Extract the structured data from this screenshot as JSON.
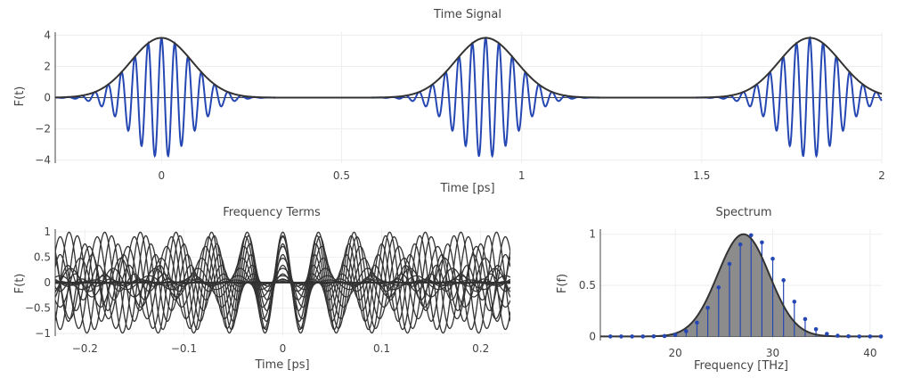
{
  "chart_data": [
    {
      "id": "time",
      "type": "line",
      "title": "Time Signal",
      "xlabel": "Time [ps]",
      "ylabel": "F(t)",
      "xlim": [
        -0.295,
        2.0
      ],
      "ylim": [
        -4.2,
        4.2
      ],
      "xticks": [
        0,
        0.5,
        1,
        1.5,
        2
      ],
      "xtick_labels": [
        "0",
        "0.5",
        "1",
        "1.5",
        "2"
      ],
      "yticks": [
        -4,
        -2,
        0,
        2,
        4
      ],
      "ytick_labels": [
        "−4",
        "−2",
        "0",
        "2",
        "4"
      ],
      "grid": true,
      "pulse": {
        "amplitude": 3.83,
        "carrier_thz": 27,
        "period_ps": 0.9,
        "envelope_sigma_ps": 0.085,
        "centers_ps": [
          0,
          0.9,
          1.8
        ]
      },
      "series_colors": {
        "signal": "#2547b3",
        "envelope": "#333333"
      }
    },
    {
      "id": "terms",
      "type": "line",
      "title": "Frequency Terms",
      "xlabel": "Time [ps]",
      "ylabel": "F(t)",
      "xlim": [
        -0.23,
        0.23
      ],
      "ylim": [
        -1.05,
        1.05
      ],
      "xticks": [
        -0.2,
        -0.1,
        0,
        0.1,
        0.2
      ],
      "xtick_labels": [
        "−0.2",
        "−0.1",
        "0",
        "0.1",
        "0.2"
      ],
      "yticks": [
        -1,
        -0.5,
        0,
        0.5,
        1
      ],
      "ytick_labels": [
        "−1",
        "−0.5",
        "0",
        "0.5",
        "1"
      ],
      "grid": true,
      "frequencies_thz": [
        13.33,
        14.44,
        15.56,
        16.67,
        17.78,
        18.89,
        20.0,
        21.11,
        22.22,
        23.33,
        24.44,
        25.56,
        26.67,
        27.78,
        28.89,
        30.0,
        31.11,
        32.22,
        33.33,
        34.44,
        35.56,
        36.67,
        37.78,
        38.89,
        40.0
      ],
      "weights": [
        0.0,
        0.0,
        0.0,
        0.0,
        0.001,
        0.004,
        0.016,
        0.052,
        0.135,
        0.28,
        0.48,
        0.71,
        0.9,
        0.99,
        0.92,
        0.76,
        0.55,
        0.34,
        0.17,
        0.071,
        0.025,
        0.007,
        0.002,
        0.0,
        0.0
      ],
      "line_color": "#333333"
    },
    {
      "id": "spectrum",
      "type": "area",
      "title": "Spectrum",
      "xlabel": "Frequency [THz]",
      "ylabel": "F(f)",
      "xlim": [
        12.3,
        41.2
      ],
      "ylim": [
        -0.04,
        1.05
      ],
      "xticks": [
        20,
        30,
        40
      ],
      "xtick_labels": [
        "20",
        "30",
        "40"
      ],
      "yticks": [
        0,
        0.5,
        1
      ],
      "ytick_labels": [
        "0",
        "0.5",
        "1"
      ],
      "grid": true,
      "x": [
        13.33,
        14.44,
        15.56,
        16.67,
        17.78,
        18.89,
        20.0,
        21.11,
        22.22,
        23.33,
        24.44,
        25.56,
        26.67,
        27.78,
        28.89,
        30.0,
        31.11,
        32.22,
        33.33,
        34.44,
        35.56,
        36.67,
        37.78,
        38.89,
        40.0,
        41.11
      ],
      "values": [
        0.0,
        0.0,
        0.0,
        0.0,
        0.001,
        0.004,
        0.016,
        0.052,
        0.135,
        0.28,
        0.48,
        0.71,
        0.9,
        0.99,
        0.92,
        0.76,
        0.55,
        0.34,
        0.17,
        0.071,
        0.025,
        0.007,
        0.002,
        0.0,
        0.0,
        0.0
      ],
      "center_thz": 27,
      "sigma_thz": 2.65,
      "fill_color": "#8c8c8c",
      "marker_color": "#2547b3",
      "curve_color": "#333333"
    }
  ]
}
